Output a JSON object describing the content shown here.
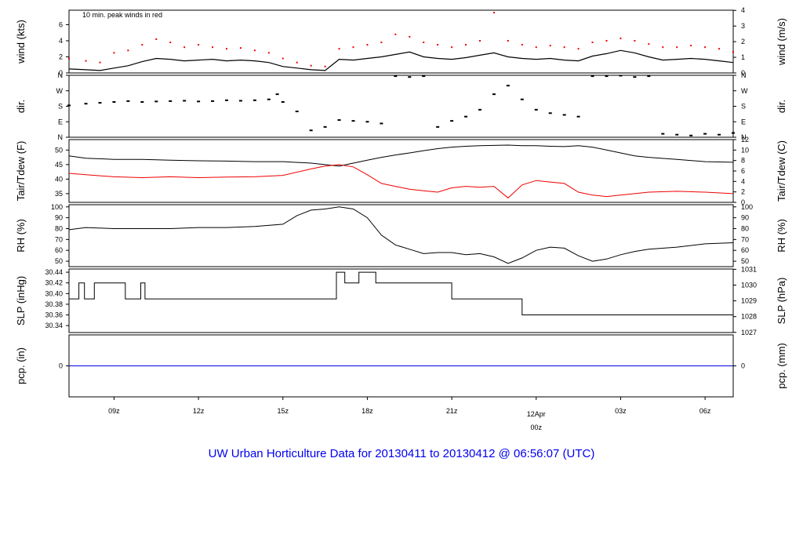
{
  "title": "UW Urban Horticulture Data for 20130411  to  20130412 @ 06:56:07  (UTC)",
  "colors": {
    "title": "#0000ee",
    "peak": "#ee0000",
    "dew": "#ee0000",
    "precip": "#0000dd",
    "axis": "#000000"
  },
  "x_axis": {
    "ticks": [
      {
        "label": "09z",
        "hour": 9
      },
      {
        "label": "12z",
        "hour": 12
      },
      {
        "label": "15z",
        "hour": 15
      },
      {
        "label": "18z",
        "hour": 18
      },
      {
        "label": "21z",
        "hour": 21
      },
      {
        "label": "03z",
        "hour": 27
      },
      {
        "label": "06z",
        "hour": 30
      }
    ],
    "day_marker": {
      "label": "12Apr",
      "sublabel": "00z",
      "hour": 24
    }
  },
  "chart_data": [
    {
      "type": "line",
      "name": "wind",
      "ylabel_left": "wind (kts)",
      "ylabel_right": "wind (m/s)",
      "annotation": "10 min. peak winds in red",
      "left_ticks": [
        0,
        2,
        4,
        6
      ],
      "right_ticks": [
        0,
        1,
        2,
        3,
        4
      ],
      "ylim": [
        0,
        7.8
      ],
      "right_factor": 1.944,
      "x": [
        7.4,
        8,
        8.5,
        9,
        9.5,
        10,
        10.5,
        11,
        11.5,
        12,
        12.5,
        13,
        13.5,
        14,
        14.5,
        15,
        15.5,
        16,
        16.5,
        17,
        17.5,
        18,
        18.5,
        19,
        19.5,
        20,
        20.5,
        21,
        21.5,
        22,
        22.5,
        23,
        23.5,
        24,
        24.5,
        25,
        25.5,
        26,
        26.5,
        27,
        27.5,
        28,
        28.5,
        29,
        29.5,
        30,
        30.5,
        31
      ],
      "y": [
        0.5,
        0.4,
        0.3,
        0.6,
        0.9,
        1.4,
        1.8,
        1.7,
        1.5,
        1.6,
        1.7,
        1.5,
        1.6,
        1.5,
        1.3,
        0.8,
        0.6,
        0.4,
        0.3,
        1.7,
        1.6,
        1.8,
        2.0,
        2.3,
        2.6,
        2.0,
        1.8,
        1.7,
        1.9,
        2.2,
        2.5,
        2.0,
        1.8,
        1.7,
        1.8,
        1.6,
        1.5,
        2.1,
        2.4,
        2.8,
        2.5,
        2.0,
        1.6,
        1.7,
        1.8,
        1.7,
        1.5,
        1.3
      ],
      "peak": [
        1.8,
        1.5,
        1.3,
        2.5,
        2.8,
        3.5,
        4.2,
        3.8,
        3.2,
        3.5,
        3.2,
        3.0,
        3.1,
        2.8,
        2.5,
        1.8,
        1.3,
        0.9,
        0.8,
        3.0,
        3.2,
        3.5,
        3.8,
        4.8,
        4.5,
        3.8,
        3.5,
        3.2,
        3.5,
        4.0,
        7.5,
        4.0,
        3.5,
        3.2,
        3.4,
        3.2,
        3.0,
        3.8,
        4.0,
        4.3,
        4.0,
        3.6,
        3.2,
        3.2,
        3.4,
        3.2,
        3.0,
        2.6
      ]
    },
    {
      "type": "scatter",
      "name": "dir",
      "ylabel_left": "dir.",
      "ylabel_right": "dir.",
      "tick_labels": [
        "N",
        "E",
        "S",
        "W",
        "N"
      ],
      "ylim": [
        0,
        360
      ],
      "x": [
        7.4,
        8,
        8.5,
        9,
        9.5,
        10,
        10.5,
        11,
        11.5,
        12,
        12.5,
        13,
        13.5,
        14,
        14.5,
        14.8,
        15,
        15.5,
        16,
        16.5,
        17,
        17.5,
        18,
        18.5,
        19,
        19.5,
        20,
        20.5,
        21,
        21.5,
        22,
        22.5,
        23,
        23.5,
        24,
        24.5,
        25,
        25.5,
        26,
        26.5,
        27,
        27.5,
        28,
        28.5,
        29,
        29.5,
        30,
        30.5,
        31
      ],
      "y": [
        185,
        195,
        200,
        205,
        210,
        205,
        208,
        210,
        212,
        208,
        210,
        215,
        212,
        215,
        220,
        250,
        205,
        150,
        40,
        60,
        100,
        95,
        90,
        80,
        355,
        350,
        355,
        60,
        95,
        120,
        160,
        250,
        300,
        220,
        160,
        140,
        130,
        120,
        355,
        355,
        358,
        350,
        355,
        20,
        15,
        10,
        20,
        15,
        25
      ]
    },
    {
      "type": "line",
      "name": "temp",
      "ylabel_left": "Tair/Tdew (F)",
      "ylabel_right": "Tair/Tdew (C)",
      "left_ticks": [
        35,
        40,
        45,
        50
      ],
      "right_ticks": [
        0,
        2,
        4,
        6,
        8,
        10,
        12
      ],
      "ylim": [
        32,
        53.6
      ],
      "x": [
        7.4,
        8,
        9,
        10,
        11,
        12,
        13,
        14,
        15,
        16,
        16.5,
        17,
        17.5,
        18,
        18.5,
        19,
        19.5,
        20,
        20.5,
        21,
        21.5,
        22,
        22.5,
        23,
        23.5,
        24,
        24.5,
        25,
        25.5,
        26,
        26.5,
        27,
        27.5,
        28,
        29,
        30,
        31
      ],
      "tair": [
        48.0,
        47.2,
        46.8,
        46.8,
        46.5,
        46.3,
        46.2,
        46.0,
        46.0,
        45.5,
        45.0,
        44.5,
        45.5,
        46.5,
        47.5,
        48.3,
        49.0,
        49.8,
        50.5,
        51.0,
        51.3,
        51.5,
        51.6,
        51.7,
        51.5,
        51.5,
        51.3,
        51.2,
        51.5,
        51.0,
        50.0,
        49.0,
        48.0,
        47.5,
        46.8,
        46.0,
        45.8
      ],
      "tdew": [
        42.0,
        41.5,
        40.8,
        40.5,
        40.8,
        40.5,
        40.7,
        40.8,
        41.3,
        43.5,
        44.5,
        45.0,
        44.2,
        41.5,
        38.5,
        37.5,
        36.5,
        36.0,
        35.5,
        37.0,
        37.5,
        37.2,
        37.5,
        33.5,
        38.0,
        39.5,
        39.0,
        38.5,
        35.5,
        34.5,
        34.0,
        34.5,
        35.0,
        35.5,
        35.8,
        35.5,
        35.0
      ]
    },
    {
      "type": "line",
      "name": "rh",
      "ylabel_left": "RH (%)",
      "ylabel_right": "RH (%)",
      "left_ticks": [
        50,
        60,
        70,
        80,
        90,
        100
      ],
      "right_ticks": [
        50,
        60,
        70,
        80,
        90,
        100
      ],
      "ylim": [
        45,
        102
      ],
      "x": [
        7.4,
        8,
        9,
        10,
        11,
        12,
        13,
        14,
        15,
        15.5,
        16,
        16.5,
        17,
        17.5,
        18,
        18.5,
        19,
        19.5,
        20,
        20.5,
        21,
        21.5,
        22,
        22.5,
        23,
        23.5,
        24,
        24.5,
        25,
        25.5,
        26,
        26.5,
        27,
        27.5,
        28,
        29,
        30,
        31
      ],
      "y": [
        79,
        81,
        80,
        80,
        80,
        81,
        81,
        82,
        84,
        92,
        97,
        98,
        100,
        98,
        90,
        74,
        65,
        61,
        57,
        58,
        58,
        56,
        57,
        54,
        48,
        53,
        60,
        63,
        62,
        55,
        50,
        52,
        56,
        59,
        61,
        63,
        66,
        67
      ]
    },
    {
      "type": "line",
      "name": "slp",
      "step": true,
      "ylabel_left": "SLP (inHg)",
      "ylabel_right": "SLP (hPa)",
      "left_ticks": [
        "30.34",
        "30.36",
        "30.38",
        "30.40",
        "30.42",
        "30.44"
      ],
      "right_ticks": [
        "1027",
        "1028",
        "1029",
        "1030",
        "1031"
      ],
      "ylim": [
        30.327,
        30.446
      ],
      "x": [
        7.4,
        7.75,
        7.95,
        8.3,
        9.4,
        9.95,
        10.1,
        13.7,
        16.9,
        17.2,
        17.7,
        18.3,
        21.0,
        23.5,
        31.0
      ],
      "y": [
        30.39,
        30.42,
        30.39,
        30.42,
        30.39,
        30.42,
        30.39,
        30.39,
        30.44,
        30.42,
        30.44,
        30.42,
        30.39,
        30.36,
        30.33
      ]
    },
    {
      "type": "line",
      "name": "pcp",
      "ylabel_left": "pcp. (in)",
      "ylabel_right": "pcp. (mm)",
      "left_ticks": [
        0
      ],
      "right_ticks": [
        0
      ],
      "ylim": [
        -1,
        1
      ],
      "x": [
        7.4,
        31.0
      ],
      "y": [
        0,
        0
      ]
    }
  ]
}
